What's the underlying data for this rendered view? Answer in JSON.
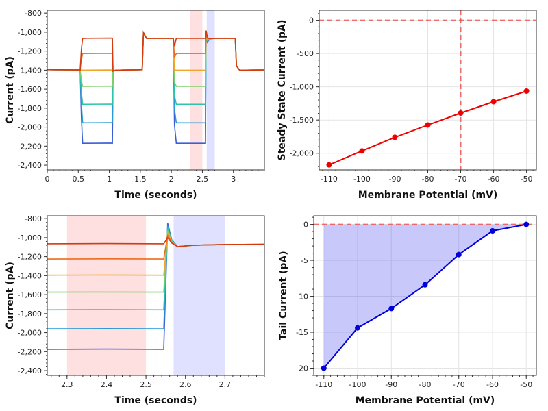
{
  "chart_data": [
    {
      "type": "line",
      "xlabel": "Time (seconds)",
      "ylabel": "Current (pA)",
      "xlim": [
        0,
        3.5
      ],
      "ylim": [
        -2450,
        -770
      ],
      "x_ticks": [
        0,
        0.5,
        1,
        1.5,
        2,
        2.5,
        3
      ],
      "y_ticks": [
        -2400,
        -2200,
        -2000,
        -1800,
        -1600,
        -1400,
        -1200,
        -1000,
        -800
      ],
      "x_tick_labels": [
        "0",
        "0.5",
        "1",
        "1.5",
        "2",
        "2.5",
        "3"
      ],
      "y_tick_labels": [
        "-2,400",
        "-2,200",
        "-2,000",
        "-1,800",
        "-1,600",
        "-1,400",
        "-1,200",
        "-1,000",
        "-800"
      ],
      "grid": false,
      "shaded_regions": [
        {
          "x": [
            2.3,
            2.5
          ],
          "color": "#ff0000",
          "opacity": 0.12
        },
        {
          "x": [
            2.57,
            2.7
          ],
          "color": "#0000ff",
          "opacity": 0.12
        }
      ],
      "series": [
        {
          "step_level": -2170,
          "color": "#3b5fd6"
        },
        {
          "step_level": -1955,
          "color": "#2a9ad6"
        },
        {
          "step_level": -1760,
          "color": "#2ec4a9"
        },
        {
          "step_level": -1570,
          "color": "#7ecf6b"
        },
        {
          "step_level": -1400,
          "color": "#f0a62a"
        },
        {
          "step_level": -1225,
          "color": "#ef6a1c"
        },
        {
          "step_level": -1065,
          "color": "#d33a10"
        }
      ],
      "sweep": {
        "baseline": -1395,
        "hold_level": -1065,
        "steps": [
          [
            0.55,
            1.05
          ],
          [
            2.05,
            2.55
          ]
        ]
      }
    },
    {
      "type": "line",
      "xlabel": "Membrane Potential (mV)",
      "ylabel": "Steady State Current (pA)",
      "xlim": [
        -113,
        -47
      ],
      "ylim": [
        -2250,
        150
      ],
      "x_ticks": [
        -110,
        -100,
        -90,
        -80,
        -70,
        -60,
        -50
      ],
      "y_ticks": [
        -2000,
        -1500,
        -1000,
        -500,
        0
      ],
      "x_tick_labels": [
        "-110",
        "-100",
        "-90",
        "-80",
        "-70",
        "-60",
        "-50"
      ],
      "y_tick_labels": [
        "-2,000",
        "-1,500",
        "-1,000",
        "-500",
        "0"
      ],
      "grid": true,
      "x": [
        -110,
        -100,
        -90,
        -80,
        -70,
        -60,
        -50
      ],
      "values": [
        -2175,
        -1965,
        -1760,
        -1575,
        -1395,
        -1225,
        -1065
      ],
      "color": "#ee0000",
      "reference_lines": {
        "y": 0,
        "x": -70
      }
    },
    {
      "type": "line",
      "xlabel": "Time (seconds)",
      "ylabel": "Current (pA)",
      "xlim": [
        2.25,
        2.8
      ],
      "ylim": [
        -2450,
        -770
      ],
      "x_ticks": [
        2.3,
        2.4,
        2.5,
        2.6,
        2.7
      ],
      "y_ticks": [
        -2400,
        -2200,
        -2000,
        -1800,
        -1600,
        -1400,
        -1200,
        -1000,
        -800
      ],
      "x_tick_labels": [
        "2.3",
        "2.4",
        "2.5",
        "2.6",
        "2.7"
      ],
      "y_tick_labels": [
        "-2,400",
        "-2,200",
        "-2,000",
        "-1,800",
        "-1,600",
        "-1,400",
        "-1,200",
        "-1,000",
        "-800"
      ],
      "grid": false,
      "shaded_regions": [
        {
          "x": [
            2.3,
            2.5
          ],
          "color": "#ff0000",
          "opacity": 0.12
        },
        {
          "x": [
            2.57,
            2.7
          ],
          "color": "#0000ff",
          "opacity": 0.12
        }
      ],
      "series": [
        {
          "step_level": -2175,
          "color": "#3b5fd6"
        },
        {
          "step_level": -1960,
          "color": "#2a9ad6"
        },
        {
          "step_level": -1760,
          "color": "#2ec4a9"
        },
        {
          "step_level": -1575,
          "color": "#7ecf6b"
        },
        {
          "step_level": -1395,
          "color": "#f0a62a"
        },
        {
          "step_level": -1225,
          "color": "#ef6a1c"
        },
        {
          "step_level": -1065,
          "color": "#d33a10"
        }
      ],
      "sweep": {
        "hold_level": -1070,
        "step_end": 2.545,
        "rise_end": 2.555
      }
    },
    {
      "type": "area",
      "xlabel": "Membrane Potential (mV)",
      "ylabel": "Tail Current (pA)",
      "xlim": [
        -113,
        -47
      ],
      "ylim": [
        -21,
        1.2
      ],
      "x_ticks": [
        -110,
        -100,
        -90,
        -80,
        -70,
        -60,
        -50
      ],
      "y_ticks": [
        -20,
        -15,
        -10,
        -5,
        0
      ],
      "x_tick_labels": [
        "-110",
        "-100",
        "-90",
        "-80",
        "-70",
        "-60",
        "-50"
      ],
      "y_tick_labels": [
        "-20",
        "-15",
        "-10",
        "-5",
        "0"
      ],
      "grid": true,
      "x": [
        -110,
        -100,
        -90,
        -80,
        -70,
        -60,
        -50
      ],
      "values": [
        -20,
        -14.4,
        -11.7,
        -8.4,
        -4.2,
        -0.9,
        0
      ],
      "color": "#0000dd",
      "fill": "#3b3bf0",
      "reference_lines": {
        "y": 0
      }
    }
  ]
}
